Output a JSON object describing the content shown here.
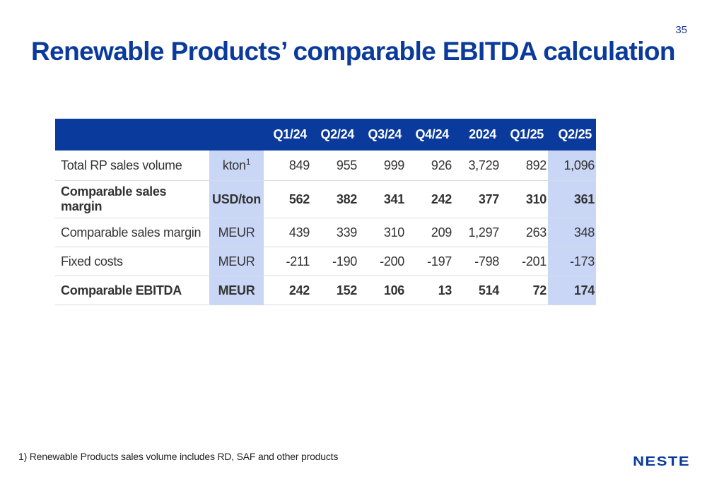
{
  "page_number": "35",
  "title": "Renewable Products’ comparable EBITDA calculation",
  "table": {
    "headers": [
      "",
      "",
      "Q1/24",
      "Q2/24",
      "Q3/24",
      "Q4/24",
      "2024",
      "Q1/25",
      "Q2/25"
    ],
    "rows": [
      {
        "label": "Total RP sales volume",
        "unit": "kton",
        "unit_sup": "1",
        "values": [
          "849",
          "955",
          "999",
          "926",
          "3,729",
          "892",
          "1,096"
        ]
      },
      {
        "label": "Comparable sales margin",
        "unit": "USD/ton",
        "unit_sup": "",
        "values": [
          "562",
          "382",
          "341",
          "242",
          "377",
          "310",
          "361"
        ]
      },
      {
        "label": "Comparable sales margin",
        "unit": "MEUR",
        "unit_sup": "",
        "values": [
          "439",
          "339",
          "310",
          "209",
          "1,297",
          "263",
          "348"
        ]
      },
      {
        "label": "Fixed costs",
        "unit": "MEUR",
        "unit_sup": "",
        "values": [
          "-211",
          "-190",
          "-200",
          "-197",
          "-798",
          "-201",
          "-173"
        ]
      },
      {
        "label": "Comparable EBITDA",
        "unit": "MEUR",
        "unit_sup": "",
        "values": [
          "242",
          "152",
          "106",
          "13",
          "514",
          "72",
          "174"
        ]
      }
    ]
  },
  "footnote": "1) Renewable Products sales volume includes RD, SAF and other products",
  "logo_text": "NESTE",
  "colors": {
    "brand_blue": "#0a3a9c",
    "highlight_blue": "#c9d6f5"
  }
}
